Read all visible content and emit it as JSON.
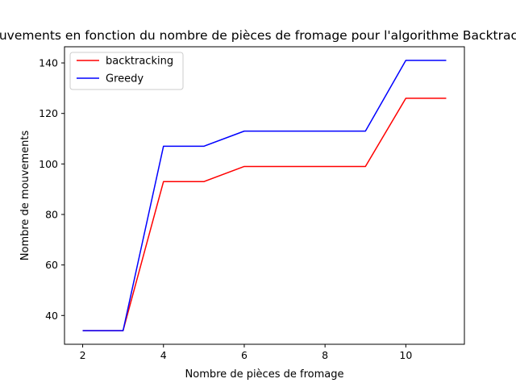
{
  "chart_data": {
    "type": "line",
    "title": "Nombre de mouvements en fonction du nombre de pièces de fromage pour l'algorithme Backtracking et Greedy",
    "xlabel": "Nombre de pièces de fromage",
    "ylabel": "Nombre de mouvements",
    "xlim": [
      1.55,
      11.45
    ],
    "ylim": [
      28.6,
      146.4
    ],
    "xticks": [
      2,
      4,
      6,
      8,
      10
    ],
    "yticks": [
      40,
      60,
      80,
      100,
      120,
      140
    ],
    "grid": false,
    "legend_position": "top-left",
    "x": [
      2,
      3,
      4,
      5,
      6,
      7,
      8,
      9,
      10,
      11
    ],
    "series": [
      {
        "name": "backtracking",
        "color": "#ff0000",
        "values": [
          34,
          34,
          93,
          93,
          99,
          99,
          99,
          99,
          126,
          126
        ]
      },
      {
        "name": "Greedy",
        "color": "#0000ff",
        "values": [
          34,
          34,
          107,
          107,
          113,
          113,
          113,
          113,
          141,
          141
        ]
      }
    ]
  }
}
